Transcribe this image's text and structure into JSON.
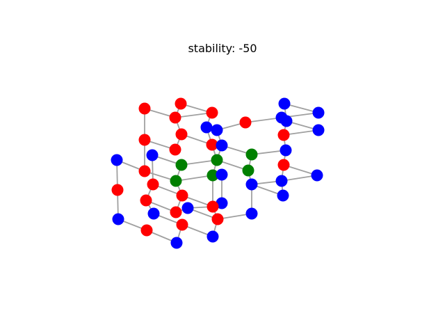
{
  "title": "stability: -50",
  "colors": {
    "node_red": "#ff0000",
    "node_blue": "#0000ff",
    "node_green": "#008000",
    "edge": "#a0a0a0"
  },
  "graph": {
    "nodes": [
      {
        "id": 0,
        "color": "red"
      },
      {
        "id": 1,
        "color": "red"
      },
      {
        "id": 2,
        "color": "red"
      },
      {
        "id": 3,
        "color": "red"
      },
      {
        "id": 4,
        "color": "red"
      },
      {
        "id": 5,
        "color": "red"
      },
      {
        "id": 6,
        "color": "blue"
      },
      {
        "id": 7,
        "color": "blue"
      },
      {
        "id": 8,
        "color": "red"
      },
      {
        "id": 9,
        "color": "blue"
      },
      {
        "id": 10,
        "color": "blue"
      },
      {
        "id": 11,
        "color": "blue"
      },
      {
        "id": 12,
        "color": "blue"
      },
      {
        "id": 13,
        "color": "blue"
      },
      {
        "id": 14,
        "color": "blue"
      },
      {
        "id": 15,
        "color": "red"
      },
      {
        "id": 16,
        "color": "blue"
      },
      {
        "id": 17,
        "color": "red"
      },
      {
        "id": 18,
        "color": "blue"
      },
      {
        "id": 19,
        "color": "blue"
      },
      {
        "id": 20,
        "color": "red"
      },
      {
        "id": 21,
        "color": "blue"
      },
      {
        "id": 22,
        "color": "green"
      },
      {
        "id": 23,
        "color": "blue"
      },
      {
        "id": 24,
        "color": "red"
      },
      {
        "id": 25,
        "color": "red"
      },
      {
        "id": 26,
        "color": "green"
      },
      {
        "id": 27,
        "color": "green"
      },
      {
        "id": 28,
        "color": "red"
      },
      {
        "id": 29,
        "color": "red"
      },
      {
        "id": 30,
        "color": "blue"
      },
      {
        "id": 31,
        "color": "green"
      },
      {
        "id": 32,
        "color": "green"
      },
      {
        "id": 33,
        "color": "green"
      },
      {
        "id": 34,
        "color": "blue"
      },
      {
        "id": 35,
        "color": "blue"
      },
      {
        "id": 36,
        "color": "red"
      },
      {
        "id": 37,
        "color": "blue"
      },
      {
        "id": 38,
        "color": "red"
      },
      {
        "id": 39,
        "color": "red"
      },
      {
        "id": 40,
        "color": "red"
      },
      {
        "id": 41,
        "color": "red"
      },
      {
        "id": 42,
        "color": "red"
      },
      {
        "id": 43,
        "color": "blue"
      },
      {
        "id": 44,
        "color": "blue"
      },
      {
        "id": 45,
        "color": "blue"
      },
      {
        "id": 46,
        "color": "blue"
      },
      {
        "id": 47,
        "color": "blue"
      },
      {
        "id": 48,
        "color": "blue"
      }
    ],
    "edges": [
      [
        0,
        1
      ],
      [
        0,
        2
      ],
      [
        2,
        5
      ],
      [
        1,
        3
      ],
      [
        3,
        4
      ],
      [
        4,
        17
      ],
      [
        2,
        3
      ],
      [
        5,
        24
      ],
      [
        24,
        25
      ],
      [
        25,
        28
      ],
      [
        3,
        24
      ],
      [
        1,
        4
      ],
      [
        4,
        6
      ],
      [
        4,
        7
      ],
      [
        6,
        7
      ],
      [
        7,
        8
      ],
      [
        8,
        9
      ],
      [
        9,
        10
      ],
      [
        9,
        11
      ],
      [
        10,
        12
      ],
      [
        11,
        13
      ],
      [
        8,
        15
      ],
      [
        15,
        16
      ],
      [
        16,
        14
      ],
      [
        13,
        14
      ],
      [
        12,
        13
      ],
      [
        15,
        17
      ],
      [
        17,
        18
      ],
      [
        18,
        19
      ],
      [
        19,
        22
      ],
      [
        22,
        23
      ],
      [
        21,
        23
      ],
      [
        21,
        20
      ],
      [
        20,
        19
      ],
      [
        5,
        25
      ],
      [
        18,
        22
      ],
      [
        24,
        33
      ],
      [
        33,
        31
      ],
      [
        31,
        29
      ],
      [
        29,
        28
      ],
      [
        28,
        26
      ],
      [
        26,
        27
      ],
      [
        27,
        22
      ],
      [
        25,
        26
      ],
      [
        33,
        32
      ],
      [
        32,
        38
      ],
      [
        38,
        36
      ],
      [
        36,
        34
      ],
      [
        34,
        35
      ],
      [
        35,
        37
      ],
      [
        31,
        36
      ],
      [
        29,
        34
      ],
      [
        26,
        30
      ],
      [
        30,
        27
      ],
      [
        39,
        40
      ],
      [
        40,
        41
      ],
      [
        41,
        42
      ],
      [
        42,
        43
      ],
      [
        39,
        44
      ],
      [
        44,
        45
      ],
      [
        45,
        46
      ],
      [
        40,
        47
      ],
      [
        47,
        46
      ],
      [
        41,
        48
      ],
      [
        48,
        42
      ],
      [
        43,
        35
      ],
      [
        38,
        39
      ],
      [
        44,
        32
      ]
    ]
  }
}
